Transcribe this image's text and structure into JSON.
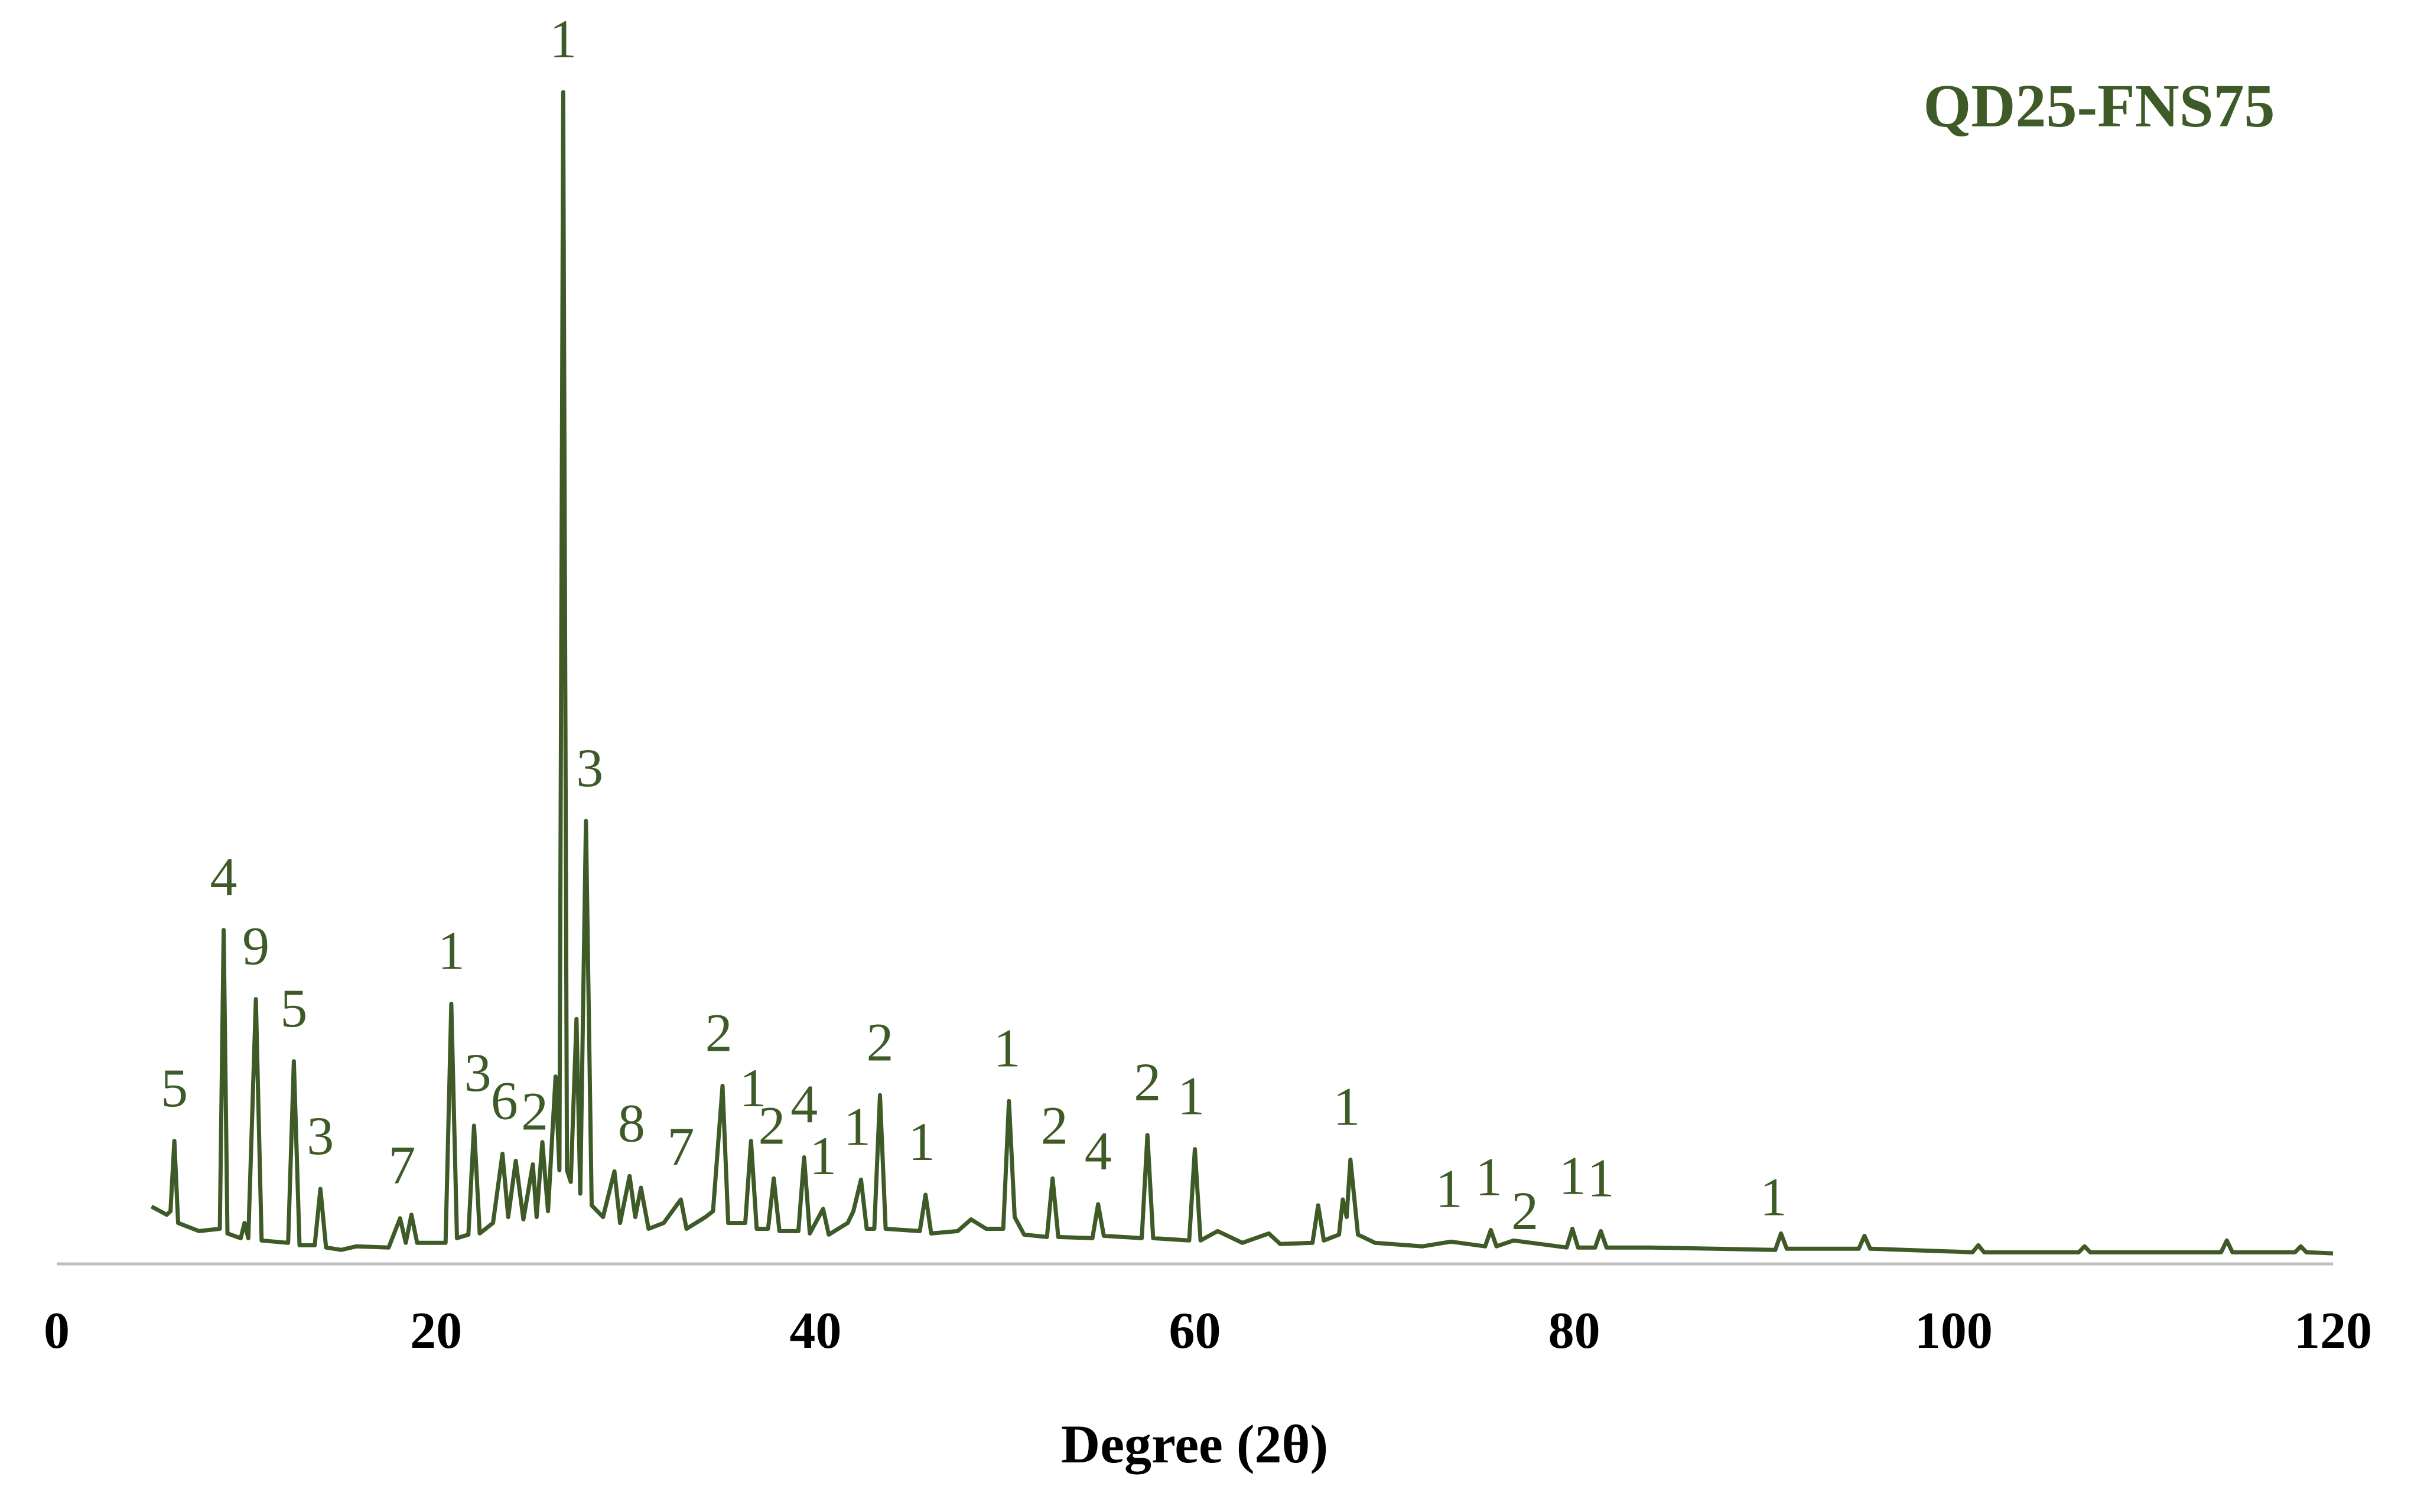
{
  "chart_data": {
    "type": "line",
    "title": "QD25-FNS75",
    "xlabel": "Degree (2θ)",
    "xlim": [
      0,
      120
    ],
    "xticks": [
      0,
      20,
      40,
      60,
      80,
      100,
      120
    ],
    "ylim": [
      0,
      100
    ],
    "grid": false,
    "x": [
      5.0,
      5.8,
      6.0,
      6.2,
      6.4,
      7.5,
      8.6,
      8.8,
      9.0,
      9.7,
      9.9,
      10.1,
      10.5,
      10.8,
      12.2,
      12.5,
      12.8,
      13.6,
      13.9,
      14.2,
      15.0,
      15.8,
      17.5,
      18.1,
      18.4,
      18.7,
      19.0,
      20.5,
      20.8,
      21.1,
      21.7,
      22.0,
      22.3,
      23.0,
      23.5,
      23.8,
      24.2,
      24.6,
      25.1,
      25.3,
      25.6,
      25.9,
      26.3,
      26.5,
      26.7,
      26.9,
      27.1,
      27.4,
      27.6,
      27.9,
      28.2,
      28.8,
      29.4,
      29.7,
      30.2,
      30.5,
      30.8,
      31.2,
      32.0,
      32.9,
      33.2,
      34.2,
      34.6,
      35.1,
      35.4,
      36.3,
      36.6,
      36.9,
      37.5,
      37.8,
      38.1,
      39.1,
      39.4,
      39.7,
      40.4,
      40.7,
      41.7,
      42.0,
      42.4,
      42.7,
      43.1,
      43.4,
      43.7,
      45.5,
      45.8,
      46.1,
      47.5,
      48.2,
      49.0,
      49.9,
      50.2,
      50.5,
      51.0,
      52.2,
      52.5,
      52.8,
      54.6,
      54.9,
      55.2,
      57.2,
      57.5,
      57.8,
      59.7,
      60.0,
      60.3,
      61.2,
      62.5,
      63.9,
      64.5,
      66.2,
      66.5,
      66.8,
      67.6,
      67.8,
      68.0,
      68.2,
      68.6,
      69.5,
      72.0,
      73.5,
      75.3,
      75.6,
      75.9,
      76.8,
      79.6,
      79.9,
      80.2,
      81.1,
      81.4,
      81.7,
      84.0,
      90.6,
      90.9,
      91.2,
      95.0,
      95.3,
      95.6,
      101.0,
      101.3,
      101.6,
      106.6,
      106.9,
      107.2,
      114.1,
      114.4,
      114.7,
      118.0,
      118.3,
      118.6,
      120.0
    ],
    "series": [
      {
        "color": "#3d5a27",
        "values": [
          4.9,
          4.2,
          4.5,
          10.5,
          3.5,
          2.8,
          3.0,
          28.5,
          2.6,
          2.2,
          3.5,
          2.2,
          22.6,
          2.0,
          1.8,
          17.3,
          1.6,
          1.6,
          6.4,
          1.4,
          1.2,
          1.5,
          1.4,
          3.9,
          1.8,
          4.2,
          1.8,
          1.8,
          22.2,
          2.2,
          2.5,
          11.8,
          2.6,
          3.5,
          9.4,
          4.0,
          8.8,
          3.8,
          8.5,
          4.0,
          10.4,
          4.5,
          16.0,
          8.0,
          100,
          8.0,
          7.0,
          20.9,
          6.0,
          37.8,
          5.0,
          4.0,
          7.9,
          3.5,
          7.5,
          4.0,
          6.5,
          3.0,
          3.5,
          5.5,
          3.0,
          4.0,
          4.5,
          15.2,
          3.5,
          3.5,
          10.5,
          3.0,
          3.0,
          7.3,
          2.8,
          2.8,
          9.1,
          2.6,
          4.7,
          2.5,
          3.5,
          4.5,
          7.2,
          3.0,
          3.0,
          14.4,
          3.0,
          2.8,
          5.9,
          2.6,
          2.8,
          3.8,
          3.0,
          3.0,
          13.9,
          4.0,
          2.5,
          2.3,
          7.3,
          2.3,
          2.2,
          5.1,
          2.4,
          2.2,
          11.0,
          2.2,
          2.0,
          9.8,
          2.0,
          2.8,
          1.8,
          2.6,
          1.7,
          1.8,
          5.0,
          2.0,
          2.5,
          5.5,
          4.0,
          8.9,
          2.5,
          1.8,
          1.5,
          1.9,
          1.5,
          2.9,
          1.5,
          2.0,
          1.4,
          3.0,
          1.4,
          1.4,
          2.8,
          1.4,
          1.4,
          1.2,
          2.6,
          1.3,
          1.3,
          2.4,
          1.3,
          1.0,
          1.6,
          1.0,
          1.0,
          1.5,
          1.0,
          1.0,
          2.0,
          1.0,
          1.0,
          1.5,
          1.0,
          0.9
        ]
      }
    ],
    "annotations": [
      {
        "text": "5",
        "x": 6.2
      },
      {
        "text": "4",
        "x": 8.8
      },
      {
        "text": "9",
        "x": 10.5
      },
      {
        "text": "5",
        "x": 12.5
      },
      {
        "text": "3",
        "x": 13.9
      },
      {
        "text": "7",
        "x": 18.2
      },
      {
        "text": "1",
        "x": 20.8
      },
      {
        "text": "3",
        "x": 22.2
      },
      {
        "text": "6",
        "x": 23.6
      },
      {
        "text": "2",
        "x": 25.2
      },
      {
        "text": "1",
        "x": 26.7
      },
      {
        "text": "3",
        "x": 28.1
      },
      {
        "text": "8",
        "x": 30.3
      },
      {
        "text": "7",
        "x": 32.9
      },
      {
        "text": "2",
        "x": 34.9
      },
      {
        "text": "1",
        "x": 36.7
      },
      {
        "text": "2",
        "x": 37.7
      },
      {
        "text": "4",
        "x": 39.4
      },
      {
        "text": "1",
        "x": 40.4
      },
      {
        "text": "1",
        "x": 42.2
      },
      {
        "text": "2",
        "x": 43.4
      },
      {
        "text": "1",
        "x": 45.6
      },
      {
        "text": "1",
        "x": 50.1
      },
      {
        "text": "2",
        "x": 52.6
      },
      {
        "text": "4",
        "x": 54.9
      },
      {
        "text": "2",
        "x": 57.5
      },
      {
        "text": "1",
        "x": 59.8
      },
      {
        "text": "1",
        "x": 68.0
      },
      {
        "text": "1",
        "x": 73.4
      },
      {
        "text": "1",
        "x": 75.5
      },
      {
        "text": "2",
        "x": 77.4
      },
      {
        "text": "1",
        "x": 79.9
      },
      {
        "text": "1",
        "x": 81.4
      },
      {
        "text": "1",
        "x": 90.5
      }
    ]
  }
}
